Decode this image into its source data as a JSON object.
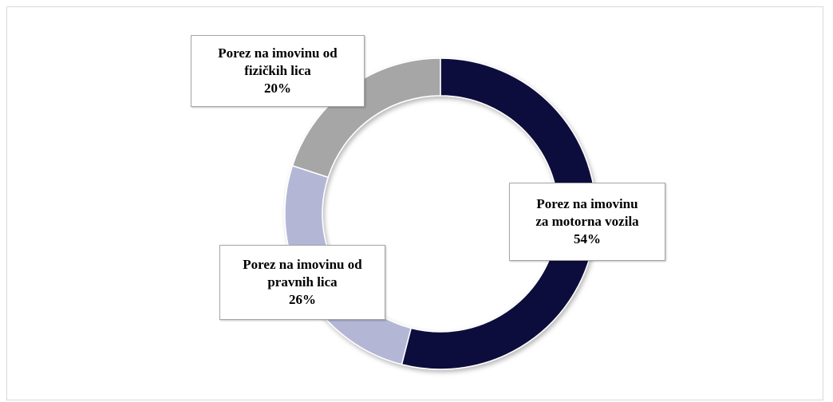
{
  "chart_data": {
    "type": "pie",
    "variant": "donut",
    "slices": [
      {
        "name_lines": [
          "Porez na imovinu",
          "za motorna vozila"
        ],
        "value": 54,
        "value_label": "54%",
        "color": "#0a0a3c"
      },
      {
        "name_lines": [
          "Porez na imovinu od",
          "pravnih lica"
        ],
        "value": 26,
        "value_label": "26%",
        "color": "#b4b6d6"
      },
      {
        "name_lines": [
          "Porez na imovinu od",
          "fizičkih lica"
        ],
        "value": 20,
        "value_label": "20%",
        "color": "#a6a6a6"
      }
    ],
    "start_angle_deg": 0,
    "direction": "clockwise",
    "legend": "none"
  }
}
